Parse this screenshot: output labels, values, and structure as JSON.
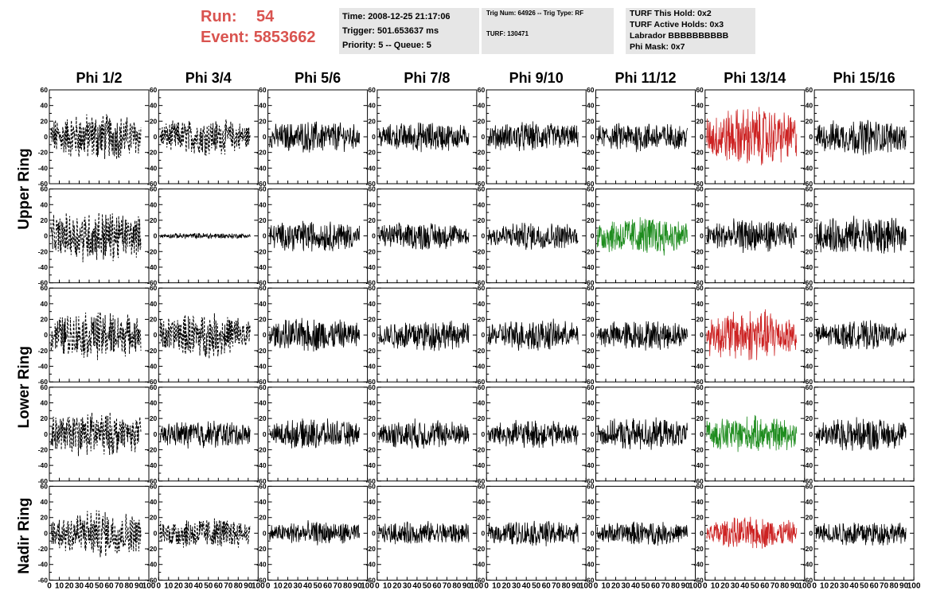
{
  "header": {
    "run_label": "Run:",
    "run_value": "54",
    "event_label": "Event:",
    "event_value": "5853662"
  },
  "info": {
    "time": "Time: 2008-12-25 21:17:06",
    "trigger": "Trigger: 501.653637 ms",
    "priority": "Priority: 5 -- Queue: 5",
    "trig_num": "Trig Num: 64926 -- Trig Type: RF",
    "turf": "TURF: 130471",
    "turf_this_hold": "TURF This Hold: 0x2",
    "turf_active_holds": "TURF Active Holds: 0x3",
    "labrador": "Labrador BBBBBBBBBB",
    "phi_mask": "Phi Mask: 0x7"
  },
  "colors": {
    "trace_default": "#000000",
    "trace_red": "#cc2222",
    "trace_green": "#1e8c1e",
    "header_text": "#d9534f",
    "info_bg": "#e6e6e6"
  },
  "chart_data": {
    "type": "line",
    "columns": [
      "Phi 1/2",
      "Phi 3/4",
      "Phi 5/6",
      "Phi 7/8",
      "Phi 9/10",
      "Phi 11/12",
      "Phi 13/14",
      "Phi 15/16"
    ],
    "rows": [
      "Upper Ring",
      "Upper Ring",
      "Lower Ring",
      "Lower Ring",
      "Nadir Ring"
    ],
    "row_labels": [
      "Upper Ring",
      "Lower Ring",
      "Nadir Ring"
    ],
    "ylim": [
      -60,
      60
    ],
    "yticks": [
      "60",
      "40",
      "20",
      "0",
      "-20",
      "-40",
      "-60"
    ],
    "xlim": [
      0,
      100
    ],
    "xticks": [
      "0",
      "10",
      "20",
      "30",
      "40",
      "50",
      "60",
      "70",
      "80",
      "90",
      "100"
    ],
    "panels": [
      [
        "dashed:24",
        "dashed:18",
        "solid:16",
        "solid:15",
        "solid:15",
        "solid:15",
        "red:30",
        "solid:18"
      ],
      [
        "dashed:26",
        "solid:3",
        "solid:16",
        "solid:14",
        "solid:14",
        "green:20",
        "solid:17",
        "solid:20"
      ],
      [
        "dashed:24",
        "dashed:22",
        "solid:17",
        "solid:16",
        "solid:16",
        "solid:15",
        "red:26",
        "solid:14"
      ],
      [
        "dashed:22",
        "solid:14",
        "solid:15",
        "solid:15",
        "solid:14",
        "solid:16",
        "green:18",
        "solid:17"
      ],
      [
        "dashed:24",
        "dashed:16",
        "solid:12",
        "solid:12",
        "solid:13",
        "solid:12",
        "red:16",
        "solid:13"
      ]
    ]
  }
}
